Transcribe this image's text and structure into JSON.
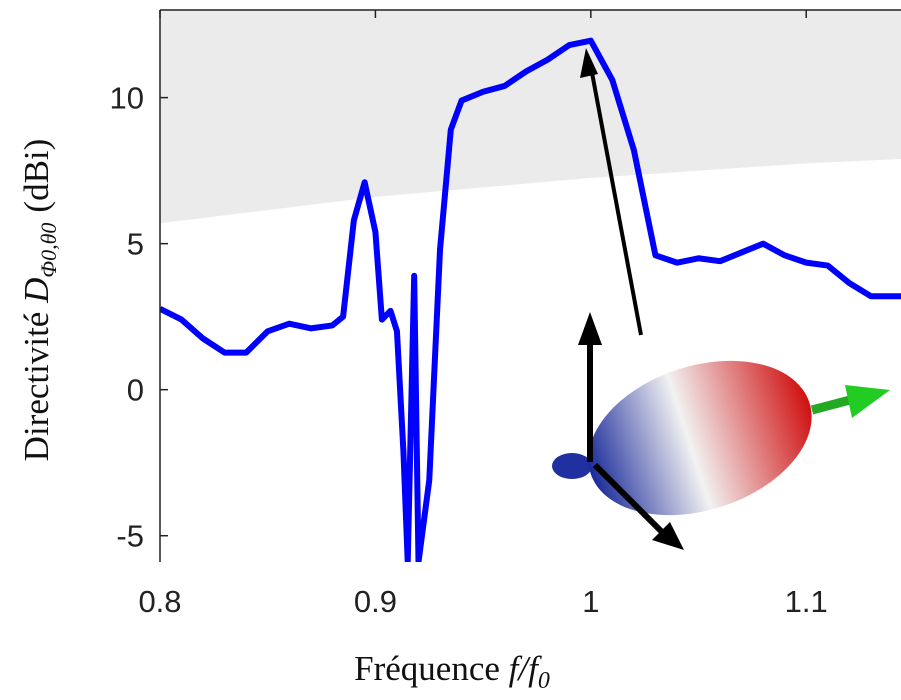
{
  "chart_data": {
    "type": "line",
    "ylabel": {
      "text": "Directivité",
      "symbol": "D",
      "subscript": "Φ0,θ0",
      "unit": "(dBi)"
    },
    "xlabel": {
      "text": "Fréquence",
      "symbol": "f/f",
      "subscript": "0"
    },
    "xlim": [
      0.8,
      1.144
    ],
    "ylim": [
      -5.9,
      13
    ],
    "xticks": [
      0.8,
      0.9,
      1,
      1.1
    ],
    "yticks": [
      -5,
      0,
      5,
      10
    ],
    "shaded_region": {
      "color": "#ebebeb",
      "x": [
        0.8,
        0.9,
        1.0,
        1.1,
        1.144
      ],
      "lower": [
        5.7,
        6.6,
        7.25,
        7.75,
        7.9
      ]
    },
    "series": [
      {
        "color": "#0000ff",
        "x": [
          0.8,
          0.81,
          0.82,
          0.83,
          0.84,
          0.85,
          0.86,
          0.87,
          0.88,
          0.885,
          0.89,
          0.895,
          0.9,
          0.903,
          0.907,
          0.91,
          0.913,
          0.915,
          0.918,
          0.92,
          0.925,
          0.93,
          0.935,
          0.94,
          0.95,
          0.96,
          0.97,
          0.98,
          0.99,
          1.0,
          1.01,
          1.02,
          1.03,
          1.04,
          1.05,
          1.06,
          1.07,
          1.08,
          1.09,
          1.1,
          1.11,
          1.12,
          1.13,
          1.144
        ],
        "values": [
          2.77,
          2.4,
          1.75,
          1.27,
          1.27,
          2.0,
          2.26,
          2.1,
          2.2,
          2.5,
          5.8,
          7.1,
          5.4,
          2.4,
          2.7,
          2.0,
          -2.1,
          -5.9,
          3.9,
          -5.9,
          -3.1,
          4.8,
          8.9,
          9.9,
          10.2,
          10.4,
          10.9,
          11.3,
          11.8,
          11.95,
          10.6,
          8.2,
          4.6,
          4.35,
          4.5,
          4.4,
          4.7,
          5.0,
          4.6,
          4.35,
          4.25,
          3.65,
          3.2,
          3.2
        ]
      }
    ]
  }
}
